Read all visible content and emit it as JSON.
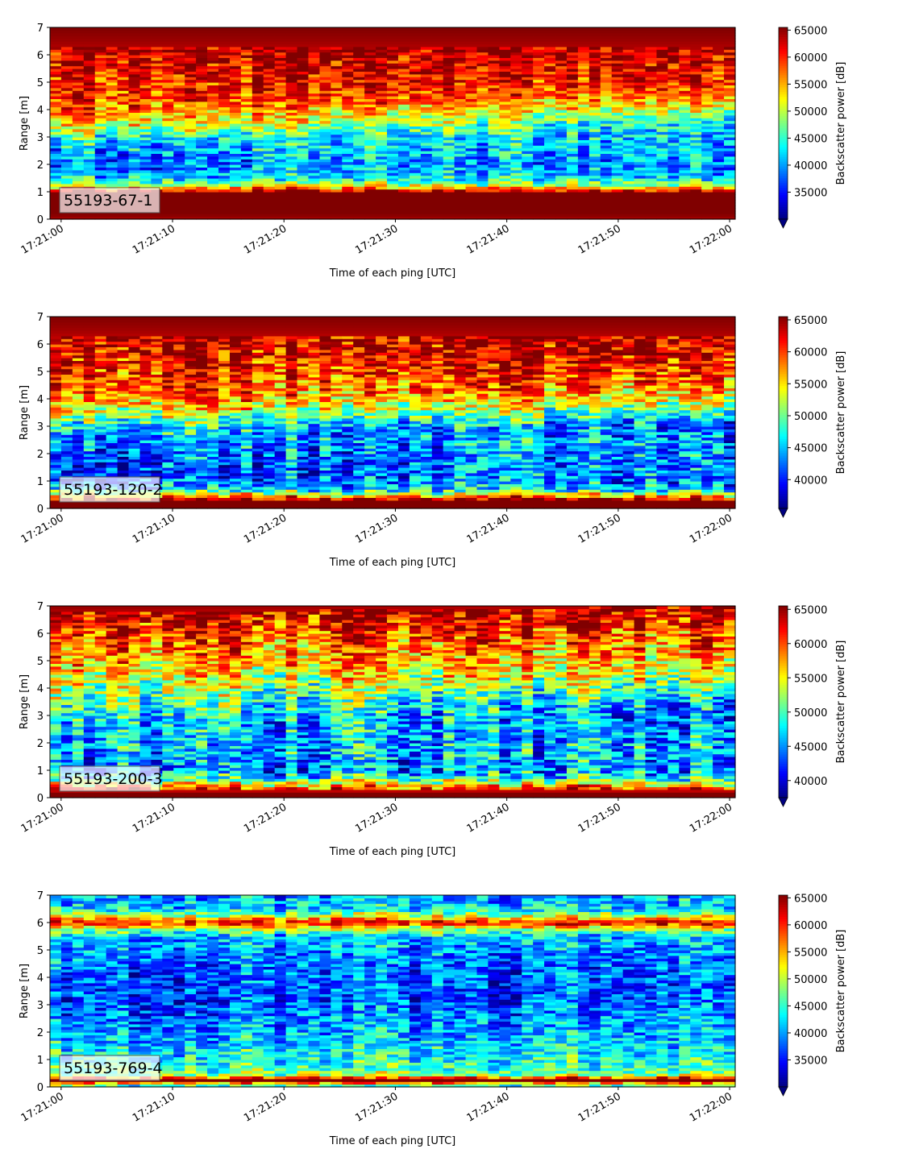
{
  "chart_data": [
    {
      "type": "heatmap",
      "title": "",
      "panel_label": "55193-67-1",
      "xlabel": "Time of each ping [UTC]",
      "ylabel": "Range [m]",
      "xlim": [
        "17:20:59",
        "17:22:00.5"
      ],
      "ylim": [
        0,
        7
      ],
      "x_ticks": [
        "17:21:00",
        "17:21:10",
        "17:21:20",
        "17:21:30",
        "17:21:40",
        "17:21:50",
        "17:22:00"
      ],
      "y_ticks": [
        0,
        1,
        2,
        3,
        4,
        5,
        6,
        7
      ],
      "colorbar": {
        "label": "Backscatter power [dB]",
        "colormap": "jet",
        "vmin": 30000,
        "vmax": 65500,
        "ticks": [
          35000,
          40000,
          45000,
          50000,
          55000,
          60000,
          65000
        ],
        "extend": "min"
      },
      "profile": {
        "range_m": [
          0.0,
          0.2,
          0.3,
          1.0,
          1.2,
          1.5,
          2.0,
          2.5,
          3.0,
          3.5,
          4.0,
          4.5,
          5.0,
          5.5,
          6.0,
          6.5,
          7.0
        ],
        "power_start": [
          64000,
          65500,
          65500,
          65500,
          52000,
          42000,
          38000,
          40000,
          45000,
          54000,
          58000,
          60000,
          61000,
          62000,
          63000,
          64500,
          65500
        ],
        "power_end": [
          64000,
          65500,
          65500,
          65500,
          52000,
          42000,
          40000,
          42000,
          41000,
          43000,
          50000,
          57000,
          60000,
          62000,
          63000,
          64500,
          65500
        ]
      }
    },
    {
      "type": "heatmap",
      "title": "",
      "panel_label": "55193-120-2",
      "xlabel": "Time of each ping [UTC]",
      "ylabel": "Range [m]",
      "xlim": [
        "17:20:59",
        "17:22:00.5"
      ],
      "ylim": [
        0,
        7
      ],
      "x_ticks": [
        "17:21:00",
        "17:21:10",
        "17:21:20",
        "17:21:30",
        "17:21:40",
        "17:21:50",
        "17:22:00"
      ],
      "y_ticks": [
        0,
        1,
        2,
        3,
        4,
        5,
        6,
        7
      ],
      "colorbar": {
        "label": "Backscatter power [dB]",
        "colormap": "jet",
        "vmin": 35500,
        "vmax": 65500,
        "ticks": [
          40000,
          45000,
          50000,
          55000,
          60000,
          65000
        ],
        "extend": "min"
      },
      "profile": {
        "range_m": [
          0.0,
          0.2,
          0.3,
          0.5,
          0.7,
          1.0,
          1.5,
          2.0,
          2.5,
          3.0,
          3.5,
          4.0,
          4.5,
          5.0,
          5.5,
          6.0,
          6.5,
          7.0
        ],
        "power_start": [
          65500,
          65500,
          65500,
          55000,
          45000,
          42000,
          41000,
          42000,
          44000,
          47000,
          54000,
          58000,
          60000,
          61000,
          62000,
          63000,
          64500,
          65500
        ],
        "power_end": [
          65500,
          65500,
          65500,
          55000,
          45000,
          43000,
          43000,
          44000,
          44000,
          42000,
          47000,
          54000,
          58000,
          60000,
          62000,
          63000,
          64500,
          65500
        ]
      }
    },
    {
      "type": "heatmap",
      "title": "",
      "panel_label": "55193-200-3",
      "xlabel": "Time of each ping [UTC]",
      "ylabel": "Range [m]",
      "xlim": [
        "17:20:59",
        "17:22:00.5"
      ],
      "ylim": [
        0,
        7
      ],
      "x_ticks": [
        "17:21:00",
        "17:21:10",
        "17:21:20",
        "17:21:30",
        "17:21:40",
        "17:21:50",
        "17:22:00"
      ],
      "y_ticks": [
        0,
        1,
        2,
        3,
        4,
        5,
        6,
        7
      ],
      "colorbar": {
        "label": "Backscatter power [dB]",
        "colormap": "jet",
        "vmin": 37500,
        "vmax": 65500,
        "ticks": [
          40000,
          45000,
          50000,
          55000,
          60000,
          65000
        ],
        "extend": "min"
      },
      "profile": {
        "range_m": [
          0.0,
          0.2,
          0.3,
          0.5,
          0.8,
          1.0,
          1.5,
          2.0,
          2.5,
          3.0,
          3.5,
          4.0,
          4.5,
          5.0,
          5.5,
          6.0,
          6.5,
          7.0
        ],
        "power_start": [
          65500,
          65500,
          62000,
          55000,
          47000,
          45000,
          45000,
          46000,
          46000,
          48000,
          51000,
          53000,
          55000,
          57000,
          59000,
          61000,
          63000,
          65000
        ],
        "power_end": [
          65500,
          65500,
          62000,
          55000,
          47000,
          45000,
          46000,
          46000,
          45000,
          44000,
          46000,
          50000,
          54000,
          56000,
          58000,
          60000,
          62000,
          64000
        ]
      }
    },
    {
      "type": "heatmap",
      "title": "",
      "panel_label": "55193-769-4",
      "xlabel": "Time of each ping [UTC]",
      "ylabel": "Range [m]",
      "xlim": [
        "17:20:59",
        "17:22:00.5"
      ],
      "ylim": [
        0,
        7
      ],
      "x_ticks": [
        "17:21:00",
        "17:21:10",
        "17:21:20",
        "17:21:30",
        "17:21:40",
        "17:21:50",
        "17:22:00"
      ],
      "y_ticks": [
        0,
        1,
        2,
        3,
        4,
        5,
        6,
        7
      ],
      "colorbar": {
        "label": "Backscatter power [dB]",
        "colormap": "jet",
        "vmin": 30000,
        "vmax": 65500,
        "ticks": [
          35000,
          40000,
          45000,
          50000,
          55000,
          60000,
          65000
        ],
        "extend": "min"
      },
      "profile": {
        "range_m": [
          0.0,
          0.15,
          0.2,
          0.3,
          0.4,
          0.6,
          1.0,
          1.5,
          2.0,
          2.5,
          3.0,
          3.5,
          4.0,
          4.5,
          5.0,
          5.5,
          5.8,
          6.0,
          6.2,
          6.5,
          7.0
        ],
        "power_start": [
          42000,
          55000,
          65500,
          65500,
          50000,
          46000,
          44000,
          42000,
          40000,
          38500,
          37000,
          37000,
          37500,
          38500,
          40000,
          41000,
          50000,
          62000,
          52000,
          42000,
          40000
        ],
        "power_end": [
          42000,
          55000,
          65500,
          65500,
          50000,
          46000,
          44000,
          42000,
          40500,
          39500,
          38000,
          37500,
          37000,
          37500,
          39000,
          41000,
          50000,
          62000,
          52000,
          42000,
          40000
        ]
      }
    }
  ]
}
